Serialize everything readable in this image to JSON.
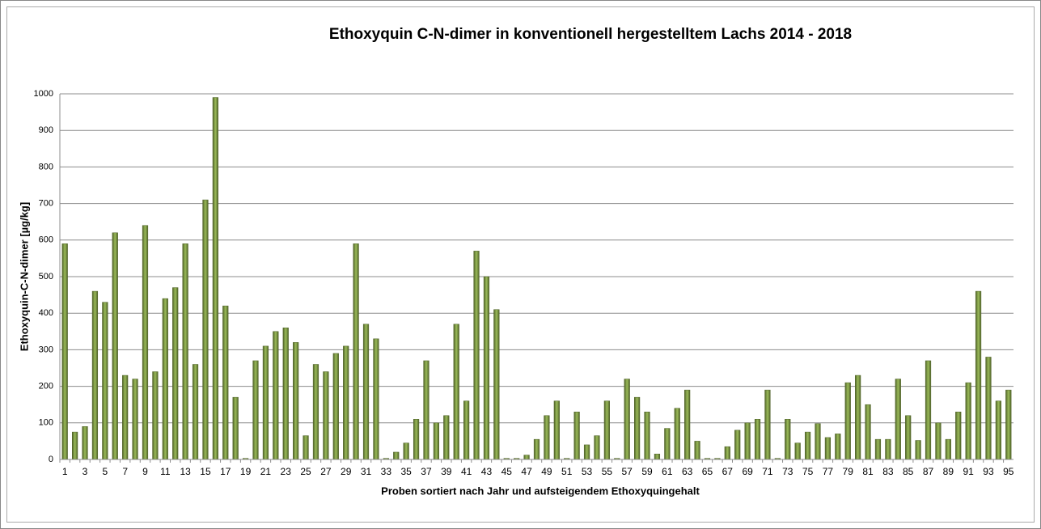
{
  "chart_data": {
    "type": "bar",
    "title": "Ethoxyquin C-N-dimer in konventionell hergestelltem Lachs 2014 - 2018",
    "y_label": "Ethoxyquin-C-N-dimer [µg/kg]",
    "x_label": "Proben sortiert nach Jahr  und aufsteigendem Ethoxyquingehalt",
    "categories": [
      "1",
      null,
      "3",
      null,
      "5",
      null,
      "7",
      null,
      "9",
      null,
      "11",
      null,
      "13",
      null,
      "15",
      null,
      "17",
      null,
      "19",
      null,
      "21",
      null,
      "23",
      null,
      "25",
      null,
      "27",
      null,
      "29",
      null,
      "31",
      null,
      "33",
      null,
      "35",
      null,
      "37",
      null,
      "39",
      null,
      "41",
      null,
      "43",
      null,
      "45",
      null,
      "47",
      null,
      "49",
      null,
      "51",
      null,
      "53",
      null,
      "55",
      null,
      "57",
      null,
      "59",
      null,
      "61",
      null,
      "63",
      null,
      "65",
      null,
      "67",
      null,
      "69",
      null,
      "71",
      null,
      "73",
      null,
      "75",
      null,
      "77",
      null,
      "79",
      null,
      "81",
      null,
      "83",
      null,
      "85",
      null,
      "87",
      null,
      "89",
      null,
      "91",
      null,
      "93",
      null,
      "95"
    ],
    "values": [
      590,
      75,
      90,
      460,
      430,
      620,
      230,
      220,
      640,
      240,
      440,
      470,
      590,
      260,
      710,
      990,
      420,
      170,
      3,
      270,
      310,
      350,
      360,
      320,
      65,
      260,
      240,
      290,
      310,
      590,
      370,
      330,
      3,
      20,
      45,
      110,
      270,
      100,
      120,
      370,
      160,
      570,
      500,
      410,
      3,
      3,
      12,
      55,
      120,
      160,
      3,
      130,
      40,
      65,
      160,
      3,
      220,
      170,
      130,
      15,
      85,
      140,
      190,
      50,
      3,
      3,
      35,
      80,
      100,
      110,
      190,
      3,
      110,
      45,
      75,
      98,
      60,
      70,
      210,
      230,
      150,
      55,
      55,
      220,
      120,
      52,
      270,
      100,
      55,
      130,
      210,
      460,
      280,
      160,
      190
    ],
    "color": "#77933c",
    "ylim": [
      0,
      1000
    ],
    "yticks": [
      0,
      100,
      200,
      300,
      400,
      500,
      600,
      700,
      800,
      900,
      1000
    ],
    "grid": true
  }
}
